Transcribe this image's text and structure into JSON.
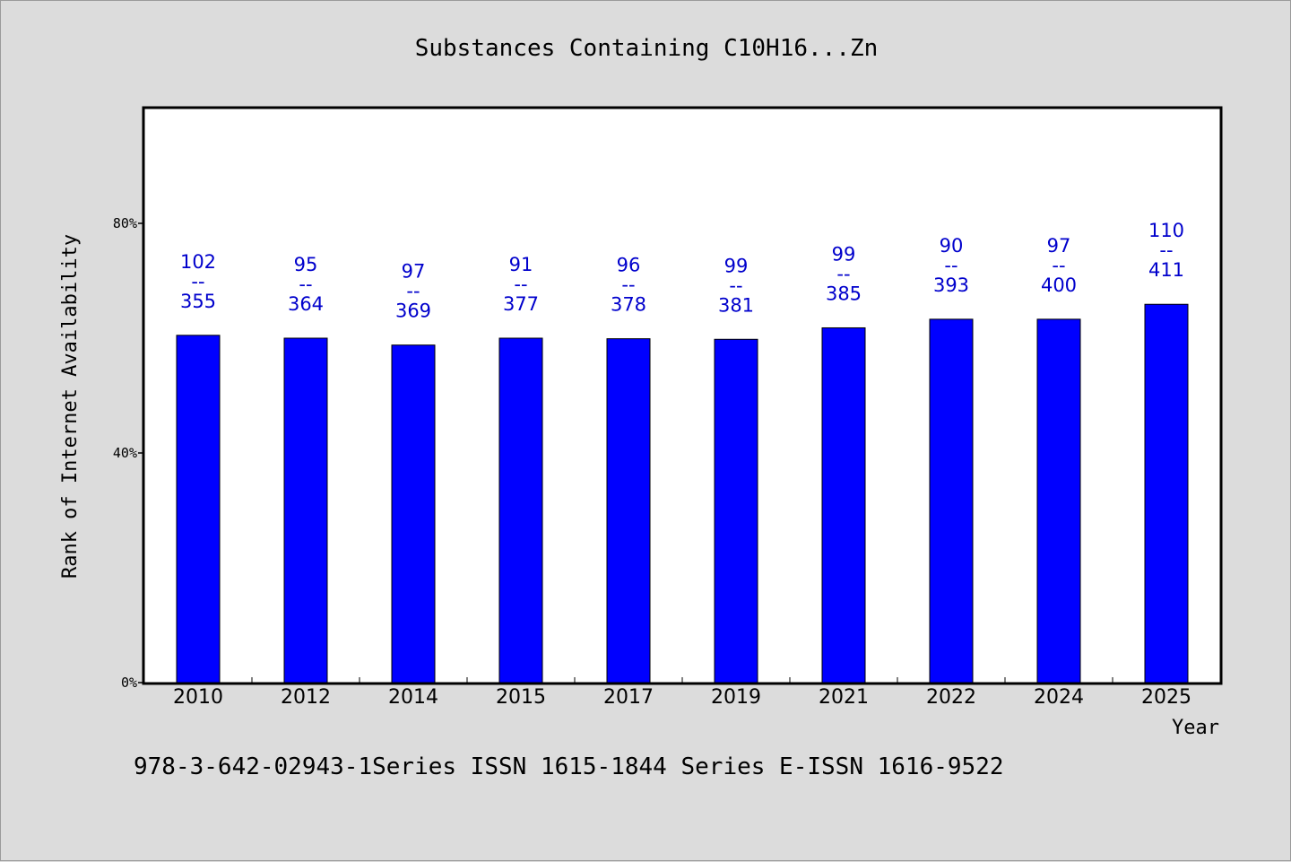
{
  "chart_data": {
    "type": "bar",
    "title": "Substances Containing C10H16...Zn",
    "xlabel": "Year",
    "ylabel": "Rank of Internet Availability",
    "ylim": [
      0,
      100
    ],
    "y_ticks": [
      0,
      40,
      80
    ],
    "y_tick_labels": [
      "0%",
      "40%",
      "80%"
    ],
    "grid": false,
    "categories": [
      "2010",
      "2012",
      "2014",
      "2015",
      "2017",
      "2019",
      "2021",
      "2022",
      "2024",
      "2025"
    ],
    "values": [
      60.5,
      60.0,
      58.8,
      60.0,
      59.9,
      59.8,
      61.8,
      63.3,
      63.3,
      65.9
    ],
    "data_labels": [
      {
        "top": "102",
        "sep": "--",
        "bottom": "355"
      },
      {
        "top": "95",
        "sep": "--",
        "bottom": "364"
      },
      {
        "top": "97",
        "sep": "--",
        "bottom": "369"
      },
      {
        "top": "91",
        "sep": "--",
        "bottom": "377"
      },
      {
        "top": "96",
        "sep": "--",
        "bottom": "378"
      },
      {
        "top": "99",
        "sep": "--",
        "bottom": "381"
      },
      {
        "top": "99",
        "sep": "--",
        "bottom": "385"
      },
      {
        "top": "90",
        "sep": "--",
        "bottom": "393"
      },
      {
        "top": "97",
        "sep": "--",
        "bottom": "400"
      },
      {
        "top": "110",
        "sep": "--",
        "bottom": "411"
      }
    ],
    "colors": {
      "bar": "#0000ff",
      "label": "#0000cc",
      "plot_bg": "#ffffff",
      "page_bg": "#dcdcdc"
    }
  },
  "footer": {
    "text": "978-3-642-02943-1Series ISSN 1615-1844 Series E-ISSN 1616-9522"
  }
}
